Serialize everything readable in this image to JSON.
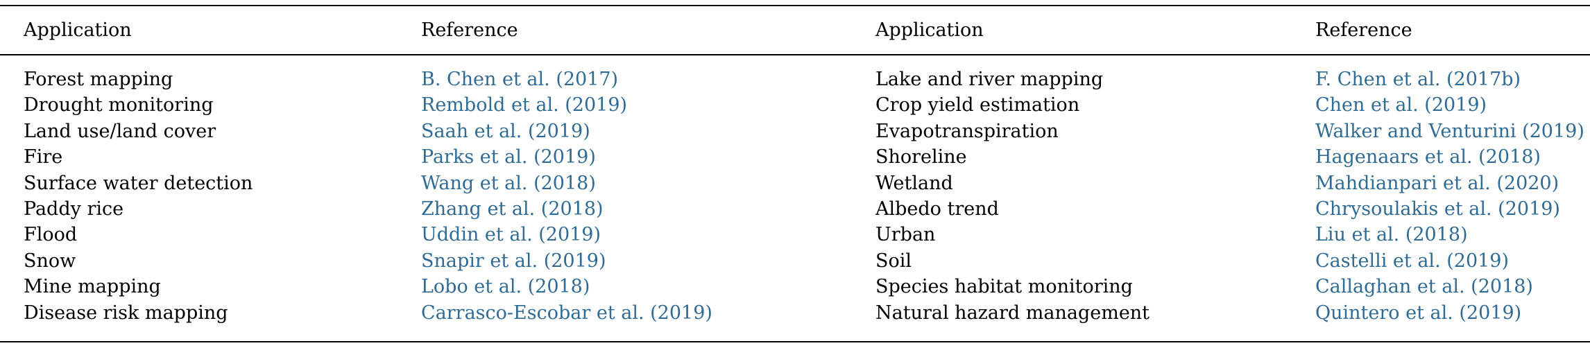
{
  "header": {
    "application_left": "Application",
    "reference_left": "Reference",
    "application_right": "Application",
    "reference_right": "Reference"
  },
  "rows": [
    {
      "app_left": "Forest mapping",
      "ref_left": "B. Chen et al. (2017)",
      "app_right": "Lake and river mapping",
      "ref_right": "F. Chen et al. (2017b)"
    },
    {
      "app_left": "Drought monitoring",
      "ref_left": "Rembold et al. (2019)",
      "app_right": "Crop yield estimation",
      "ref_right": "Chen et al. (2019)"
    },
    {
      "app_left": "Land use/land cover",
      "ref_left": "Saah et al. (2019)",
      "app_right": "Evapotranspiration",
      "ref_right": "Walker and Venturini (2019)"
    },
    {
      "app_left": "Fire",
      "ref_left": "Parks et al. (2019)",
      "app_right": "Shoreline",
      "ref_right": "Hagenaars et al. (2018)"
    },
    {
      "app_left": "Surface water detection",
      "ref_left": "Wang et al. (2018)",
      "app_right": "Wetland",
      "ref_right": "Mahdianpari et al. (2020)"
    },
    {
      "app_left": "Paddy rice",
      "ref_left": "Zhang et al. (2018)",
      "app_right": "Albedo trend",
      "ref_right": "Chrysoulakis et al. (2019)"
    },
    {
      "app_left": "Flood",
      "ref_left": "Uddin et al. (2019)",
      "app_right": "Urban",
      "ref_right": "Liu et al. (2018)"
    },
    {
      "app_left": "Snow",
      "ref_left": "Snapir et al. (2019)",
      "app_right": "Soil",
      "ref_right": "Castelli et al. (2019)"
    },
    {
      "app_left": "Mine mapping",
      "ref_left": "Lobo et al. (2018)",
      "app_right": "Species habitat monitoring",
      "ref_right": "Callaghan et al. (2018)"
    },
    {
      "app_left": "Disease risk mapping",
      "ref_left": "Carrasco-Escobar et al. (2019)",
      "app_right": "Natural hazard management",
      "ref_right": "Quintero et al. (2019)"
    }
  ],
  "colors": {
    "text": "#000000",
    "link": "#2f6b94",
    "rule": "#000000"
  }
}
